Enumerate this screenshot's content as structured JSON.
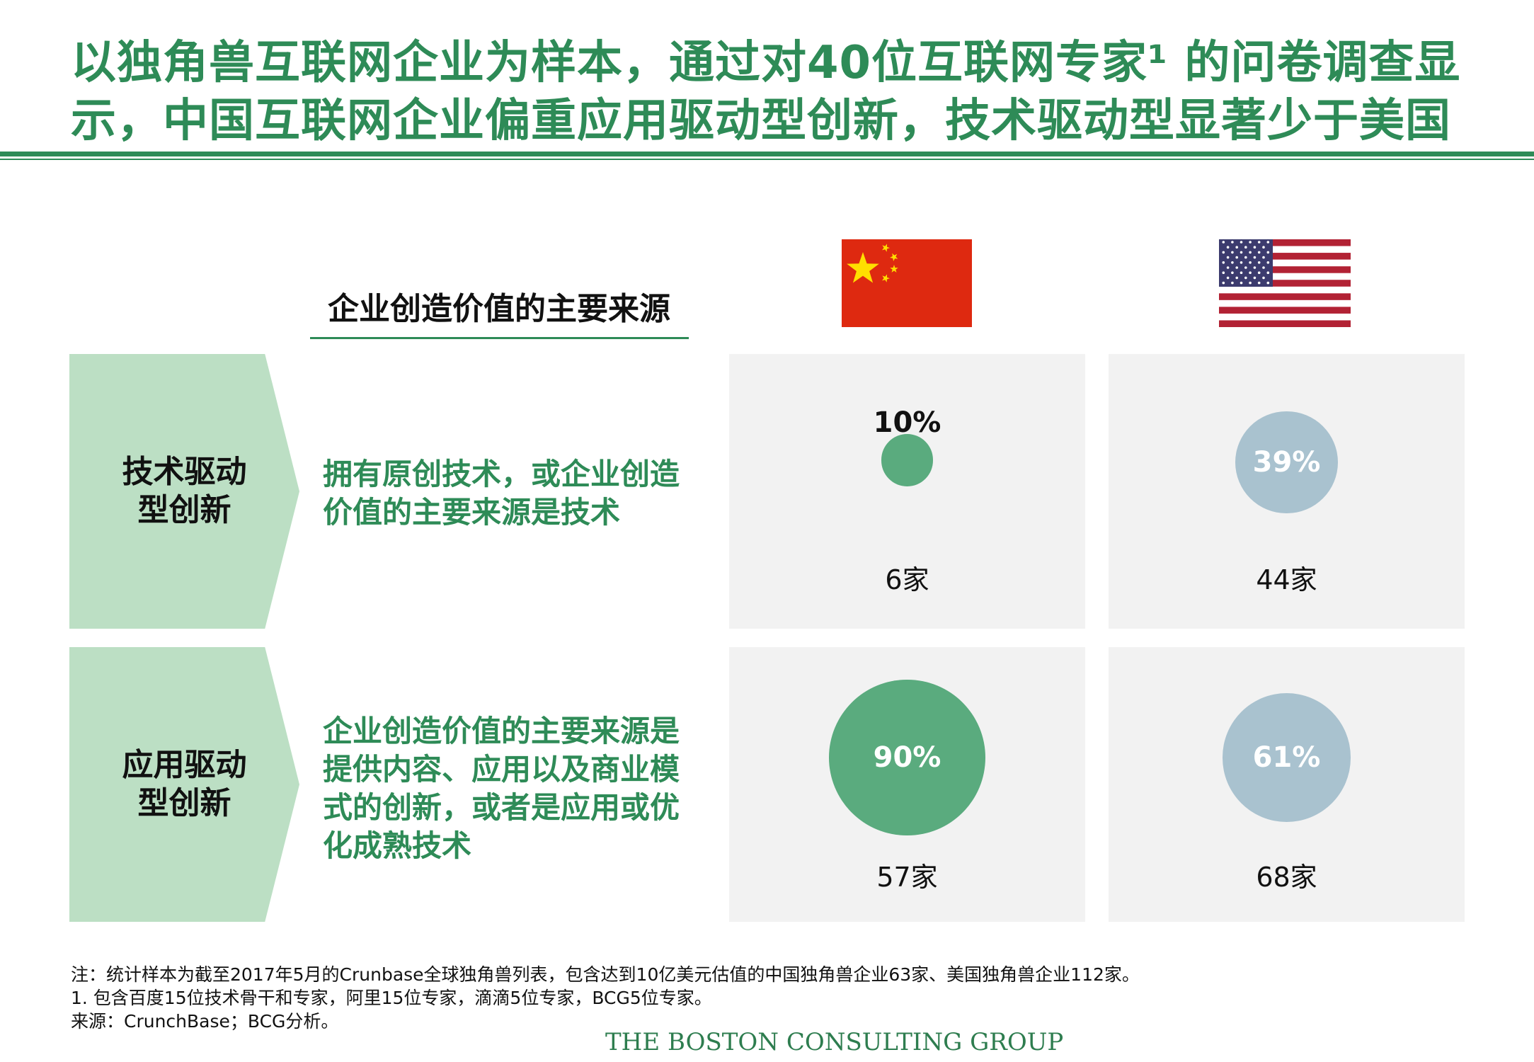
{
  "title": "以独角兽互联网企业为样本，通过对40位互联网专家¹ 的问卷调查显示，中国互联网企业偏重应用驱动型创新，技术驱动型显著少于美国",
  "column_header": "企业创造价值的主要来源",
  "colors": {
    "brand_green": "#2e8b57",
    "china_bubble": "#5aab7e",
    "us_bubble": "#a9c2cf",
    "label_fill": "#bcdfc4",
    "cell_fill": "#f2f2f2",
    "china_red": "#de2910",
    "china_star": "#ffde00",
    "us_red": "#b22234",
    "us_blue": "#3c3b6e"
  },
  "columns": [
    {
      "icon": "china-flag-icon"
    },
    {
      "icon": "usa-flag-icon"
    }
  ],
  "rows": [
    {
      "label": "技术驱动型创新",
      "description": "拥有原创技术，或企业创造价值的主要来源是技术"
    },
    {
      "label": "应用驱动型创新",
      "description": "企业创造价值的主要来源是提供内容、应用以及商业模式的创新，或者是应用或优化成熟技术"
    }
  ],
  "chart_data": {
    "type": "bubble",
    "rows": [
      "技术驱动型创新",
      "应用驱动型创新"
    ],
    "columns": [
      "China",
      "USA"
    ],
    "values": [
      {
        "row": "技术驱动型创新",
        "col": "China",
        "percent": 10,
        "percent_label": "10%",
        "count_label": "6家"
      },
      {
        "row": "技术驱动型创新",
        "col": "USA",
        "percent": 39,
        "percent_label": "39%",
        "count_label": "44家"
      },
      {
        "row": "应用驱动型创新",
        "col": "China",
        "percent": 90,
        "percent_label": "90%",
        "count_label": "57家"
      },
      {
        "row": "应用驱动型创新",
        "col": "USA",
        "percent": 61,
        "percent_label": "61%",
        "count_label": "68家"
      }
    ]
  },
  "notes": {
    "note": "注：统计样本为截至2017年5月的Crunbase全球独角兽列表，包含达到10亿美元估值的中国独角兽企业63家、美国独角兽企业112家。",
    "footnote": "1. 包含百度15位技术骨干和专家，阿里15位专家，滴滴5位专家，BCG5位专家。",
    "source": "来源：CrunchBase；BCG分析。"
  },
  "logo": "THE BOSTON CONSULTING GROUP"
}
